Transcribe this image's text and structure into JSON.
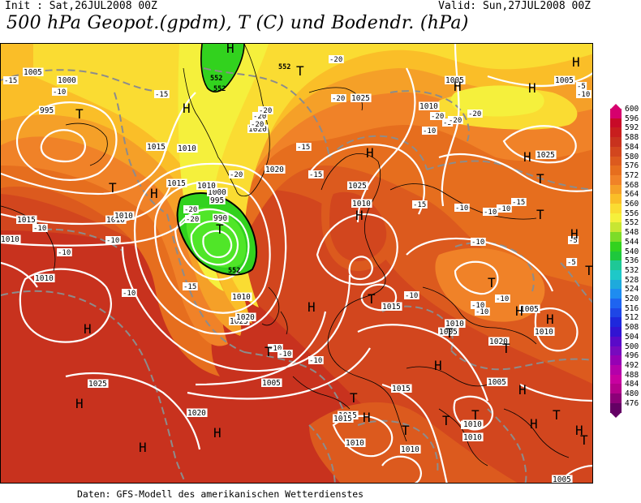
{
  "header": {
    "init": "Init : Sat,26JUL2008 00Z",
    "valid": "Valid: Sun,27JUL2008 00Z",
    "title": "500 hPa Geopot.(gpdm), T (C) und Bodendr. (hPa)"
  },
  "footer": {
    "credit": "Daten: GFS-Modell des amerikanischen Wetterdienstes"
  },
  "colorbar": {
    "levels": [
      "600",
      "596",
      "592",
      "588",
      "584",
      "580",
      "576",
      "572",
      "568",
      "564",
      "560",
      "556",
      "552",
      "548",
      "544",
      "540",
      "536",
      "532",
      "528",
      "524",
      "520",
      "516",
      "512",
      "508",
      "504",
      "500",
      "496",
      "492",
      "488",
      "484",
      "480",
      "476"
    ],
    "colors": [
      "#d6006e",
      "#c80a28",
      "#c81e1e",
      "#c8321e",
      "#d2461e",
      "#dc5a1e",
      "#e66e1e",
      "#f08228",
      "#f5a028",
      "#fabe28",
      "#fadc32",
      "#f5f03c",
      "#c8e632",
      "#7ddc28",
      "#32d21e",
      "#1ec83c",
      "#1ec896",
      "#1ec8c8",
      "#1eaadc",
      "#1e8cf0",
      "#1e64f0",
      "#1e46e6",
      "#1e28dc",
      "#3214d2",
      "#5a0ac8",
      "#780abe",
      "#9600b4",
      "#b400aa",
      "#c800a0",
      "#b4008c",
      "#8c0078",
      "#640064"
    ]
  },
  "map": {
    "colors": {
      "deep_red": "#c8321e",
      "red": "#d2461e",
      "red_orange": "#dc5a1e",
      "orange": "#e66e1e",
      "light_orange": "#f08228",
      "amber": "#f5a028",
      "yellow_orange": "#fabe28",
      "yellow": "#fadc32",
      "light_yellow": "#f5f03c",
      "green": "#32d21e",
      "bright_green": "#50e628",
      "isobar": "#ffffff",
      "isotherm": "#8c8c8c",
      "coast": "#000000",
      "geopot": "#000000"
    },
    "pressure_labels": [
      "1005",
      "1000",
      "995",
      "1015",
      "1010",
      "1020",
      "1025",
      "1010",
      "1005",
      "995",
      "1000",
      "990",
      "1010",
      "1015",
      "1020",
      "1025",
      "1010",
      "1005",
      "1025",
      "1020",
      "1015",
      "1010",
      "1005",
      "1010",
      "1015",
      "1010",
      "1025",
      "1020",
      "1015",
      "1010",
      "1005",
      "1010",
      "1015",
      "1010",
      "1010",
      "1025",
      "1010",
      "1005",
      "1005",
      "1010",
      "1005",
      "1010",
      "1015",
      "1020",
      "1010",
      "1010"
    ],
    "temp_labels": [
      "-15",
      "-10",
      "-15",
      "-20",
      "-20",
      "-20",
      "-20",
      "-20",
      "-20",
      "-15",
      "-20",
      "-20",
      "-20",
      "-10",
      "-10",
      "-10",
      "-15",
      "-10",
      "-5",
      "-10",
      "-5",
      "-10",
      "-10",
      "-10",
      "-10",
      "-15",
      "-10",
      "-5",
      "-10",
      "-10",
      "-5",
      "-10",
      "-15",
      "-20",
      "-20",
      "-15",
      "-10",
      "-10",
      "-10",
      "-10"
    ],
    "geopot_labels": [
      "552",
      "552",
      "552",
      "552"
    ],
    "high_label": "H",
    "low_label": "T"
  }
}
